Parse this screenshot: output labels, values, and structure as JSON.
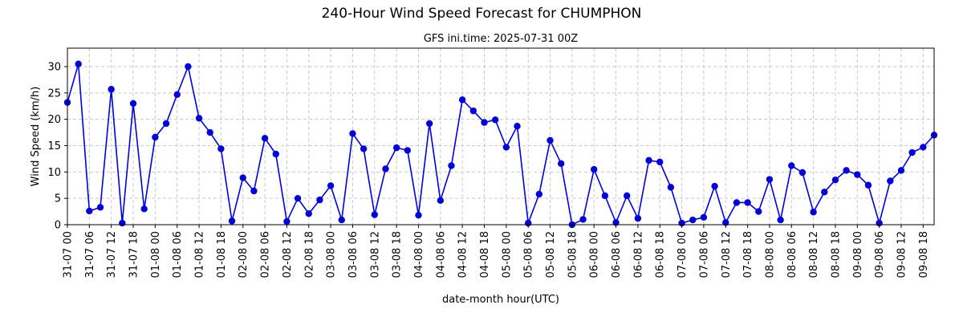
{
  "chart_data": {
    "type": "line",
    "title": "240-Hour Wind Speed Forecast for CHUMPHON",
    "subtitle": "GFS ini.time: 2025-07-31 00Z",
    "xlabel": "date-month hour(UTC)",
    "ylabel": "Wind Speed (km/h)",
    "ylim": [
      0,
      33.5
    ],
    "yticks": [
      0,
      5,
      10,
      15,
      20,
      25,
      30
    ],
    "grid": true,
    "color": "#0000dd",
    "x_interval_hours": 3,
    "xtick_labels": [
      "31-07 00",
      "31-07 06",
      "31-07 12",
      "31-07 18",
      "01-08 00",
      "01-08 06",
      "01-08 12",
      "01-08 18",
      "02-08 00",
      "02-08 06",
      "02-08 12",
      "02-08 18",
      "03-08 00",
      "03-08 06",
      "03-08 12",
      "03-08 18",
      "04-08 00",
      "04-08 06",
      "04-08 12",
      "04-08 18",
      "05-08 00",
      "05-08 06",
      "05-08 12",
      "05-08 18",
      "06-08 00",
      "06-08 06",
      "06-08 12",
      "06-08 18",
      "07-08 00",
      "07-08 06",
      "07-08 12",
      "07-08 18",
      "08-08 00",
      "08-08 06",
      "08-08 12",
      "08-08 18",
      "09-08 00",
      "09-08 06",
      "09-08 12",
      "09-08 18"
    ],
    "series": [
      {
        "values": [
          23.2,
          30.5,
          2.6,
          3.3,
          25.7,
          0.3,
          23.0,
          3.0,
          16.6,
          19.2,
          24.7,
          30.0,
          20.2,
          17.5,
          14.4,
          0.7,
          8.9,
          6.4,
          16.4,
          13.4,
          0.6,
          5.0,
          2.1,
          4.7,
          7.4,
          0.9,
          17.3,
          14.4,
          1.9,
          10.6,
          14.6,
          14.1,
          1.8,
          19.2,
          4.6,
          11.2,
          23.7,
          21.6,
          19.4,
          19.9,
          14.7,
          18.7,
          0.3,
          5.8,
          16.0,
          11.6,
          0.0,
          1.0,
          10.5,
          5.5,
          0.4,
          5.5,
          1.2,
          12.2,
          11.9,
          7.1,
          0.3,
          0.9,
          1.4,
          7.3,
          0.4,
          4.2,
          4.2,
          2.5,
          8.6,
          0.9,
          11.2,
          9.9,
          2.4,
          6.2,
          8.5,
          10.3,
          9.5,
          7.5,
          0.3,
          8.3,
          10.3,
          13.7,
          14.7,
          17.0
        ]
      }
    ]
  }
}
